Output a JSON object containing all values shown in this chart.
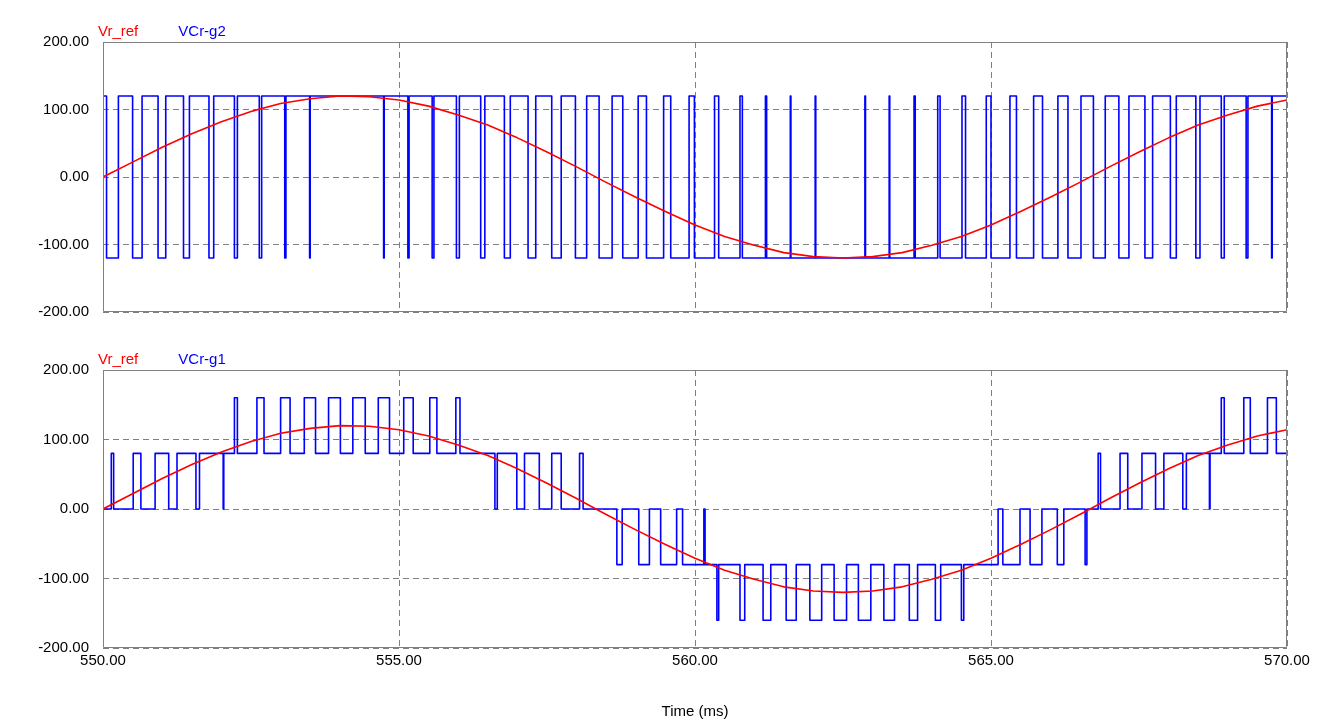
{
  "chart_data": [
    {
      "type": "line",
      "legend": "top left",
      "tick_labels": "y",
      "grid": true,
      "marker": "none",
      "line_style": "solid",
      "xlim": [
        550,
        570
      ],
      "xticks": [
        {
          "value": 550,
          "label": null
        },
        {
          "value": 555,
          "label": null
        },
        {
          "value": 560,
          "label": null
        },
        {
          "value": 565,
          "label": null
        },
        {
          "value": 570,
          "label": null
        }
      ],
      "ylim": [
        -200,
        200
      ],
      "yticks": [
        {
          "value": -200,
          "label": "-200.00"
        },
        {
          "value": -100,
          "label": "-100.00"
        },
        {
          "value": 0,
          "label": "0.00"
        },
        {
          "value": 100,
          "label": "100.00"
        },
        {
          "value": 200,
          "label": "200.00"
        }
      ],
      "series": [
        {
          "name": "Vr_ref",
          "color": "#ff0000",
          "type": "line",
          "x": [
            550,
            550.5,
            551,
            551.5,
            552,
            552.5,
            553,
            553.5,
            554,
            554.5,
            555,
            555.5,
            556,
            556.5,
            557,
            557.5,
            558,
            558.5,
            559,
            559.5,
            560,
            560.5,
            561,
            561.5,
            562,
            562.5,
            563,
            563.5,
            564,
            564.5,
            565,
            565.5,
            566,
            566.5,
            567,
            567.5,
            568,
            568.5,
            569,
            569.5,
            570
          ],
          "values": [
            0,
            22,
            44,
            64,
            82,
            97,
            109,
            116,
            120,
            119,
            114,
            105,
            92,
            77,
            58,
            37,
            15,
            -8,
            -30,
            -51,
            -71,
            -88,
            -101,
            -112,
            -118,
            -120,
            -118,
            -112,
            -101,
            -88,
            -71,
            -51,
            -30,
            -8,
            15,
            37,
            58,
            77,
            92,
            105,
            114
          ]
        },
        {
          "name": "VCr-g2",
          "color": "#0000ff",
          "type": "step",
          "x": [
            550,
            550.06,
            550.26,
            550.5,
            550.66,
            550.93,
            551.06,
            551.36,
            551.46,
            551.79,
            551.87,
            552.22,
            552.27,
            552.64,
            552.68,
            553.07,
            553.09,
            553.49,
            553.5,
            554.74,
            554.75,
            555.15,
            555.17,
            555.56,
            555.59,
            555.97,
            556.02,
            556.38,
            556.45,
            556.78,
            556.88,
            557.18,
            557.31,
            557.58,
            557.74,
            557.98,
            558.17,
            558.38,
            558.6,
            558.78,
            559.04,
            559.18,
            559.47,
            559.59,
            559.9,
            559.99,
            560.33,
            560.4,
            560.76,
            560.8,
            561.19,
            561.21,
            561.61,
            561.62,
            562.03,
            562.04,
            562.87,
            562.88,
            563.28,
            563.29,
            563.7,
            563.72,
            564.1,
            564.14,
            564.51,
            564.57,
            564.92,
            565,
            565.32,
            565.43,
            565.72,
            565.87,
            566.13,
            566.3,
            566.52,
            566.73,
            566.93,
            567.16,
            567.33,
            567.6,
            567.73,
            568.03,
            568.13,
            568.46,
            568.53,
            568.89,
            568.94,
            569.31,
            569.34,
            569.74,
            569.75,
            570
          ],
          "values": [
            120,
            -120,
            120,
            -120,
            120,
            -120,
            120,
            -120,
            120,
            -120,
            120,
            -120,
            120,
            -120,
            120,
            -120,
            120,
            -120,
            120,
            -120,
            120,
            -120,
            120,
            -120,
            120,
            -120,
            120,
            -120,
            120,
            -120,
            120,
            -120,
            120,
            -120,
            120,
            -120,
            120,
            -120,
            120,
            -120,
            120,
            -120,
            120,
            -120,
            120,
            -120,
            120,
            -120,
            120,
            -120,
            120,
            -120,
            120,
            -120,
            120,
            -120,
            120,
            -120,
            120,
            -120,
            120,
            -120,
            120,
            -120,
            120,
            -120,
            120,
            -120,
            120,
            -120,
            120,
            -120,
            120,
            -120,
            120,
            -120,
            120,
            -120,
            120,
            -120,
            120,
            -120,
            120,
            -120,
            120,
            -120,
            120,
            -120,
            120,
            -120,
            120,
            120
          ]
        }
      ]
    },
    {
      "type": "line",
      "legend": "top left",
      "grid": true,
      "marker": "none",
      "line_style": "solid",
      "xlabel": "Time (ms)",
      "xlim": [
        550,
        570
      ],
      "xticks": [
        {
          "value": 550,
          "label": "550.00"
        },
        {
          "value": 555,
          "label": "555.00"
        },
        {
          "value": 560,
          "label": "560.00"
        },
        {
          "value": 565,
          "label": "565.00"
        },
        {
          "value": 570,
          "label": "570.00"
        }
      ],
      "ylim": [
        -200,
        200
      ],
      "yticks": [
        {
          "value": -200,
          "label": "-200.00"
        },
        {
          "value": -100,
          "label": "-100.00"
        },
        {
          "value": 0,
          "label": "0.00"
        },
        {
          "value": 100,
          "label": "100.00"
        },
        {
          "value": 200,
          "label": "200.00"
        }
      ],
      "series": [
        {
          "name": "Vr_ref",
          "color": "#ff0000",
          "type": "line",
          "x": [
            550,
            550.5,
            551,
            551.5,
            552,
            552.5,
            553,
            553.5,
            554,
            554.5,
            555,
            555.5,
            556,
            556.5,
            557,
            557.5,
            558,
            558.5,
            559,
            559.5,
            560,
            560.5,
            561,
            561.5,
            562,
            562.5,
            563,
            563.5,
            564,
            564.5,
            565,
            565.5,
            566,
            566.5,
            567,
            567.5,
            568,
            568.5,
            569,
            569.5,
            570
          ],
          "values": [
            0,
            22,
            44,
            64,
            82,
            97,
            109,
            116,
            120,
            119,
            114,
            105,
            92,
            77,
            58,
            37,
            15,
            -8,
            -30,
            -51,
            -71,
            -88,
            -101,
            -112,
            -118,
            -120,
            -118,
            -112,
            -101,
            -88,
            -71,
            -51,
            -30,
            -8,
            15,
            37,
            58,
            77,
            92,
            105,
            114
          ]
        },
        {
          "name": "VCr-g1",
          "color": "#0000ff",
          "type": "step",
          "x": [
            550,
            550.14,
            550.18,
            550.51,
            550.64,
            550.88,
            551.11,
            551.25,
            551.57,
            551.63,
            552.03,
            552.04,
            552.22,
            552.27,
            552.6,
            552.72,
            553,
            553.16,
            553.4,
            553.59,
            553.81,
            554.01,
            554.22,
            554.43,
            554.65,
            554.84,
            555.08,
            555.24,
            555.52,
            555.64,
            555.96,
            556.03,
            556.62,
            556.66,
            556.99,
            557.12,
            557.37,
            557.58,
            557.74,
            558.05,
            558.11,
            558.68,
            558.77,
            559.05,
            559.23,
            559.42,
            559.69,
            559.79,
            560.15,
            560.17,
            560.37,
            560.4,
            560.76,
            560.84,
            561.15,
            561.28,
            561.54,
            561.71,
            561.94,
            562.14,
            562.35,
            562.56,
            562.76,
            562.97,
            563.19,
            563.37,
            563.62,
            563.76,
            564.06,
            564.15,
            564.5,
            564.54,
            565.12,
            565.2,
            565.49,
            565.66,
            565.86,
            566.12,
            566.23,
            566.59,
            566.62,
            566.81,
            566.85,
            567.18,
            567.31,
            567.55,
            567.78,
            567.92,
            568.24,
            568.3,
            568.69,
            568.7,
            568.89,
            568.94,
            569.27,
            569.38,
            569.67,
            569.82,
            570
          ],
          "values": [
            0,
            80,
            0,
            80,
            0,
            80,
            0,
            80,
            0,
            80,
            0,
            80,
            160,
            80,
            160,
            80,
            160,
            80,
            160,
            80,
            160,
            80,
            160,
            80,
            160,
            80,
            160,
            80,
            160,
            80,
            160,
            80,
            0,
            80,
            0,
            80,
            0,
            80,
            0,
            80,
            0,
            -80,
            0,
            -80,
            0,
            -80,
            0,
            -80,
            0,
            -80,
            -160,
            -80,
            -160,
            -80,
            -160,
            -80,
            -160,
            -80,
            -160,
            -80,
            -160,
            -80,
            -160,
            -80,
            -160,
            -80,
            -160,
            -80,
            -160,
            -80,
            -160,
            -80,
            0,
            -80,
            0,
            -80,
            0,
            -80,
            0,
            -80,
            0,
            80,
            0,
            80,
            0,
            80,
            0,
            80,
            0,
            80,
            0,
            80,
            160,
            80,
            160,
            80,
            160,
            80,
            80
          ]
        }
      ]
    }
  ]
}
